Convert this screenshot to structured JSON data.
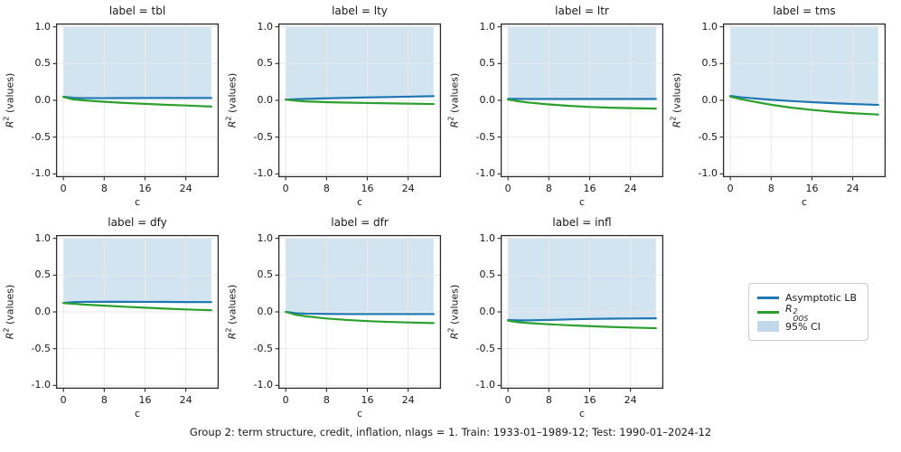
{
  "figure": {
    "caption": "Group 2: term structure, credit, inflation, nlags = 1. Train: 1933-01–1989-12; Test: 1990-01–2024-12"
  },
  "colors": {
    "asymptotic_lb": "#1f77b4",
    "r2_oos": "#2ca02c",
    "ci_fill": "rgba(31,119,180,0.2)",
    "ci_legend": "rgba(31,119,180,0.28)",
    "grid": "#e9e9e9",
    "spine": "#2b2b2b",
    "text": "#1a1a1a"
  },
  "legend": {
    "items": [
      {
        "label": "Asymptotic LB",
        "swatch": "line-blue"
      },
      {
        "parts": {
          "base": "R",
          "sup": "2",
          "sub": "OOS"
        },
        "swatch": "line-green"
      },
      {
        "label": "95% CI",
        "swatch": "patch-lightblue"
      }
    ]
  },
  "chart_data": {
    "type": "line",
    "grid": true,
    "layout": {
      "rows": 2,
      "cols": 4,
      "legend_position": "bottom-right-cell"
    },
    "x_label": "c",
    "y_label": "R² (values)",
    "y_label_parts": {
      "base": "R",
      "sup": "2",
      "rest": " (values)"
    },
    "x_ticks": [
      "0",
      "8",
      "16",
      "24"
    ],
    "x_tick_values": [
      0,
      8,
      16,
      24
    ],
    "y_ticks": [
      "1.0",
      "0.5",
      "0.0",
      "-0.5",
      "-1.0"
    ],
    "y_tick_values": [
      1.0,
      0.5,
      0.0,
      -0.5,
      -1.0
    ],
    "xlim": [
      -1.45,
      30.45
    ],
    "ylim": [
      -1.045,
      1.045
    ],
    "ci": {
      "label": "95% CI",
      "upper": 1.0,
      "lower_follows": "Asymptotic LB",
      "x_start": 0,
      "x_end": 29
    },
    "series_names": [
      "Asymptotic LB",
      "R²_OOS"
    ],
    "x": [
      0,
      2,
      4,
      8,
      12,
      16,
      20,
      24,
      29
    ],
    "panels": [
      {
        "title": "label = tbl",
        "asymptotic_lb": [
          0.05,
          0.034,
          0.03,
          0.03,
          0.031,
          0.032,
          0.032,
          0.032,
          0.032
        ],
        "r2_oos": [
          0.045,
          0.012,
          0.0,
          -0.02,
          -0.035,
          -0.048,
          -0.06,
          -0.07,
          -0.085
        ]
      },
      {
        "title": "label = lty",
        "asymptotic_lb": [
          0.01,
          0.015,
          0.02,
          0.028,
          0.034,
          0.04,
          0.045,
          0.05,
          0.057
        ],
        "r2_oos": [
          0.01,
          -0.005,
          -0.015,
          -0.025,
          -0.031,
          -0.036,
          -0.04,
          -0.045,
          -0.05
        ]
      },
      {
        "title": "label = ltr",
        "asymptotic_lb": [
          0.02,
          0.02,
          0.019,
          0.019,
          0.019,
          0.019,
          0.019,
          0.019,
          0.019
        ],
        "r2_oos": [
          0.01,
          -0.012,
          -0.03,
          -0.055,
          -0.075,
          -0.09,
          -0.1,
          -0.106,
          -0.112
        ]
      },
      {
        "title": "label = tms",
        "asymptotic_lb": [
          0.06,
          0.042,
          0.03,
          0.008,
          -0.01,
          -0.025,
          -0.038,
          -0.05,
          -0.062
        ],
        "r2_oos": [
          0.05,
          0.018,
          -0.01,
          -0.06,
          -0.1,
          -0.13,
          -0.155,
          -0.175,
          -0.193
        ]
      },
      {
        "title": "label = dfy",
        "asymptotic_lb": [
          0.122,
          0.132,
          0.136,
          0.137,
          0.137,
          0.136,
          0.135,
          0.134,
          0.133
        ],
        "r2_oos": [
          0.12,
          0.11,
          0.1,
          0.085,
          0.07,
          0.057,
          0.045,
          0.033,
          0.022
        ]
      },
      {
        "title": "label = dfr",
        "asymptotic_lb": [
          0.0,
          -0.018,
          -0.024,
          -0.028,
          -0.03,
          -0.03,
          -0.03,
          -0.03,
          -0.03
        ],
        "r2_oos": [
          0.0,
          -0.04,
          -0.06,
          -0.09,
          -0.11,
          -0.125,
          -0.136,
          -0.144,
          -0.152
        ]
      },
      {
        "title": "label = infl",
        "asymptotic_lb": [
          -0.11,
          -0.115,
          -0.115,
          -0.11,
          -0.102,
          -0.096,
          -0.092,
          -0.09,
          -0.088
        ],
        "r2_oos": [
          -0.12,
          -0.14,
          -0.152,
          -0.168,
          -0.182,
          -0.194,
          -0.204,
          -0.213,
          -0.222
        ]
      }
    ]
  }
}
